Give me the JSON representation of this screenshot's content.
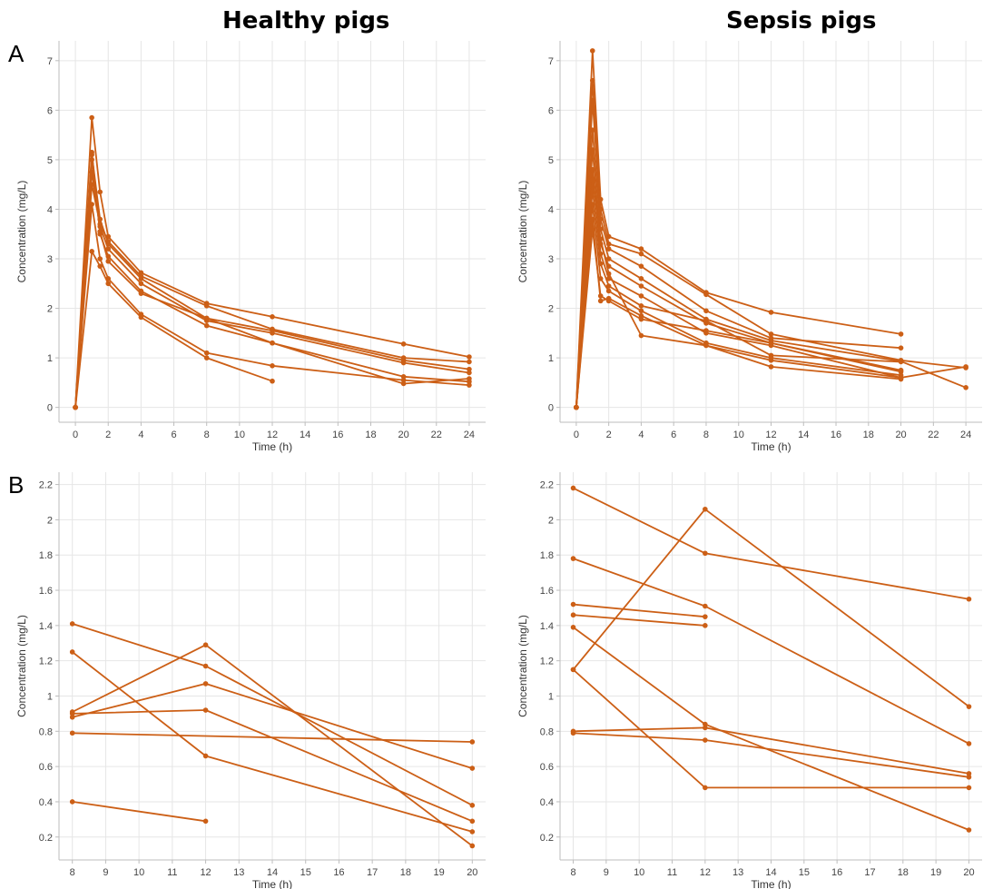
{
  "titles": {
    "left": "Healthy pigs",
    "right": "Sepsis pigs"
  },
  "panel_labels": {
    "top": "A",
    "bottom": "B"
  },
  "colors": {
    "series": "#cc5f16",
    "grid": "#e6e6e6",
    "axis": "#bdbdbd"
  },
  "chart_data": [
    {
      "type": "line",
      "title": "Healthy pigs",
      "panel": "A",
      "xlabel": "Time (h)",
      "ylabel": "Concentration (mg/L)",
      "xlim": [
        -1,
        25
      ],
      "ylim": [
        -0.3,
        7.4
      ],
      "xticks": [
        0,
        2,
        4,
        6,
        8,
        10,
        12,
        14,
        16,
        18,
        20,
        22,
        24
      ],
      "yticks": [
        0,
        1,
        2,
        3,
        4,
        5,
        6,
        7
      ],
      "grid": true,
      "series": [
        {
          "x": [
            0,
            1,
            1.5,
            2,
            4,
            8,
            12,
            20,
            24
          ],
          "y": [
            0,
            5.85,
            4.35,
            3.45,
            2.72,
            2.1,
            1.83,
            1.28,
            1.02
          ]
        },
        {
          "x": [
            0,
            1,
            1.5,
            2,
            4,
            8,
            12,
            20,
            24
          ],
          "y": [
            0,
            5.1,
            3.8,
            3.3,
            2.6,
            1.8,
            1.55,
            0.95,
            0.77
          ]
        },
        {
          "x": [
            0,
            1,
            1.5,
            2,
            4,
            8,
            12,
            20,
            24
          ],
          "y": [
            0,
            4.75,
            3.65,
            3.2,
            2.5,
            1.75,
            1.5,
            0.9,
            0.7
          ]
        },
        {
          "x": [
            0,
            1,
            1.5,
            2,
            4,
            8,
            12,
            20,
            24
          ],
          "y": [
            0,
            5.15,
            3.5,
            3.05,
            2.35,
            1.65,
            1.3,
            0.62,
            0.52
          ]
        },
        {
          "x": [
            0,
            1,
            1.5,
            2,
            4,
            8,
            12,
            20,
            24
          ],
          "y": [
            0,
            4.1,
            3.0,
            2.6,
            1.88,
            1.1,
            0.84,
            0.55,
            0.45
          ]
        },
        {
          "x": [
            0,
            1,
            1.5,
            2,
            4,
            8,
            12
          ],
          "y": [
            0,
            3.15,
            2.85,
            2.5,
            1.82,
            1.0,
            0.53
          ]
        },
        {
          "x": [
            0,
            1,
            1.5,
            2,
            4,
            8,
            12,
            20,
            24
          ],
          "y": [
            0,
            4.5,
            3.7,
            3.35,
            2.65,
            2.05,
            1.58,
            1.0,
            0.92
          ]
        },
        {
          "x": [
            0,
            1,
            1.5,
            2,
            4,
            8,
            12,
            20,
            24
          ],
          "y": [
            0,
            5.0,
            3.55,
            2.95,
            2.3,
            1.8,
            1.3,
            0.48,
            0.58
          ]
        }
      ]
    },
    {
      "type": "line",
      "title": "Sepsis pigs",
      "panel": "A",
      "xlabel": "Time (h)",
      "ylabel": "Concentration (mg/L)",
      "xlim": [
        -1,
        25
      ],
      "ylim": [
        -0.3,
        7.4
      ],
      "xticks": [
        0,
        2,
        4,
        6,
        8,
        10,
        12,
        14,
        16,
        18,
        20,
        22,
        24
      ],
      "yticks": [
        0,
        1,
        2,
        3,
        4,
        5,
        6,
        7
      ],
      "grid": true,
      "series": [
        {
          "x": [
            0,
            1,
            1.5,
            2,
            4,
            8,
            12,
            20
          ],
          "y": [
            0,
            7.2,
            4.2,
            3.45,
            3.2,
            2.32,
            1.92,
            1.48
          ]
        },
        {
          "x": [
            0,
            1,
            1.5,
            2,
            4,
            8,
            12,
            20,
            24
          ],
          "y": [
            0,
            6.6,
            4.0,
            3.3,
            3.1,
            2.28,
            1.48,
            0.95,
            0.8
          ]
        },
        {
          "x": [
            0,
            1,
            1.5,
            2,
            4,
            8,
            12,
            20
          ],
          "y": [
            0,
            6.2,
            3.8,
            3.2,
            2.85,
            1.95,
            1.4,
            1.2
          ]
        },
        {
          "x": [
            0,
            1,
            1.5,
            2,
            4,
            8,
            12,
            20,
            24
          ],
          "y": [
            0,
            5.6,
            3.6,
            3.0,
            2.6,
            1.78,
            1.35,
            0.93,
            0.4
          ]
        },
        {
          "x": [
            0,
            1,
            1.5,
            2,
            4,
            8,
            12,
            20
          ],
          "y": [
            0,
            5.2,
            3.3,
            2.85,
            2.45,
            1.7,
            1.3,
            0.72
          ]
        },
        {
          "x": [
            0,
            1,
            1.5,
            2,
            4,
            8,
            12,
            20,
            24
          ],
          "y": [
            0,
            4.8,
            3.1,
            2.6,
            2.25,
            1.5,
            1.25,
            0.6,
            0.82
          ]
        },
        {
          "x": [
            0,
            1,
            1.5,
            2,
            4,
            8,
            12,
            20
          ],
          "y": [
            0,
            4.4,
            2.9,
            2.45,
            2.05,
            1.75,
            1.05,
            0.92
          ]
        },
        {
          "x": [
            0,
            1,
            1.5,
            2,
            4,
            8,
            12,
            20
          ],
          "y": [
            0,
            4.1,
            2.6,
            2.35,
            1.95,
            1.3,
            1.0,
            0.65
          ]
        },
        {
          "x": [
            0,
            1,
            1.5,
            2,
            4,
            8,
            12,
            20
          ],
          "y": [
            0,
            3.8,
            2.15,
            2.2,
            1.85,
            1.25,
            0.82,
            0.57
          ]
        },
        {
          "x": [
            0,
            1,
            1.5,
            2,
            4,
            8,
            12,
            20
          ],
          "y": [
            0,
            3.6,
            2.25,
            2.15,
            1.78,
            1.55,
            1.3,
            0.75
          ]
        },
        {
          "x": [
            0,
            1,
            1.5,
            2,
            4,
            8,
            12,
            20
          ],
          "y": [
            0,
            4.6,
            3.4,
            2.7,
            1.45,
            1.25,
            0.95,
            0.6
          ]
        }
      ]
    },
    {
      "type": "line",
      "title": "Healthy pigs",
      "panel": "B",
      "xlabel": "Time (h)",
      "ylabel": "Concentration (mg/L)",
      "xlim": [
        7.6,
        20.4
      ],
      "ylim": [
        0.07,
        2.27
      ],
      "xticks": [
        8,
        9,
        10,
        11,
        12,
        13,
        14,
        15,
        16,
        17,
        18,
        19,
        20
      ],
      "yticks": [
        0.2,
        0.4,
        0.6,
        0.8,
        1,
        1.2,
        1.4,
        1.6,
        1.8,
        2,
        2.2
      ],
      "grid": true,
      "series": [
        {
          "x": [
            8,
            12,
            20
          ],
          "y": [
            1.41,
            1.17,
            0.38
          ]
        },
        {
          "x": [
            8,
            12,
            20
          ],
          "y": [
            1.25,
            0.66,
            0.23
          ]
        },
        {
          "x": [
            8,
            12,
            20
          ],
          "y": [
            0.91,
            1.29,
            0.15
          ]
        },
        {
          "x": [
            8,
            12,
            20
          ],
          "y": [
            0.88,
            1.07,
            0.59
          ]
        },
        {
          "x": [
            8,
            12,
            20
          ],
          "y": [
            0.9,
            0.92,
            0.29
          ]
        },
        {
          "x": [
            8,
            20
          ],
          "y": [
            0.79,
            0.74
          ]
        },
        {
          "x": [
            8,
            12
          ],
          "y": [
            0.4,
            0.29
          ]
        }
      ]
    },
    {
      "type": "line",
      "title": "Sepsis pigs",
      "panel": "B",
      "xlabel": "Time (h)",
      "ylabel": "Concentration (mg/L)",
      "xlim": [
        7.6,
        20.4
      ],
      "ylim": [
        0.07,
        2.27
      ],
      "xticks": [
        8,
        9,
        10,
        11,
        12,
        13,
        14,
        15,
        16,
        17,
        18,
        19,
        20
      ],
      "yticks": [
        0.2,
        0.4,
        0.6,
        0.8,
        1,
        1.2,
        1.4,
        1.6,
        1.8,
        2,
        2.2
      ],
      "grid": true,
      "series": [
        {
          "x": [
            8,
            12,
            20
          ],
          "y": [
            2.18,
            1.81,
            1.55
          ]
        },
        {
          "x": [
            8,
            12,
            20
          ],
          "y": [
            1.78,
            1.51,
            0.73
          ]
        },
        {
          "x": [
            8,
            12,
            20
          ],
          "y": [
            1.15,
            2.06,
            0.94
          ]
        },
        {
          "x": [
            8,
            12
          ],
          "y": [
            1.52,
            1.45
          ]
        },
        {
          "x": [
            8,
            12
          ],
          "y": [
            1.46,
            1.4
          ]
        },
        {
          "x": [
            8,
            12,
            20
          ],
          "y": [
            1.39,
            0.84,
            0.24
          ]
        },
        {
          "x": [
            8,
            12,
            20
          ],
          "y": [
            1.15,
            0.48,
            0.48
          ]
        },
        {
          "x": [
            8,
            12,
            20
          ],
          "y": [
            0.8,
            0.82,
            0.56
          ]
        },
        {
          "x": [
            8,
            12,
            20
          ],
          "y": [
            0.79,
            0.75,
            0.54
          ]
        }
      ]
    }
  ]
}
